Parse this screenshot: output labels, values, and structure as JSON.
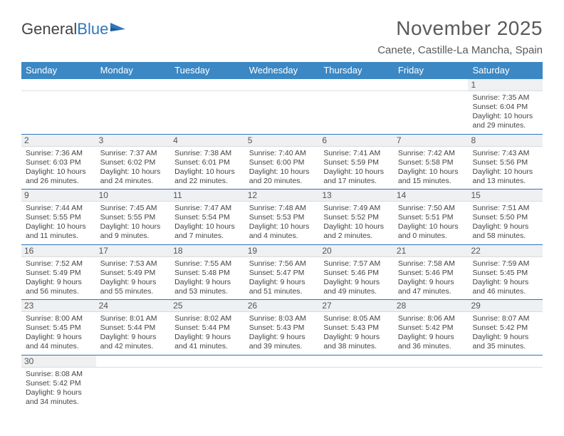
{
  "logo": {
    "text1": "General",
    "text2": "Blue"
  },
  "title": "November 2025",
  "location": "Canete, Castille-La Mancha, Spain",
  "colors": {
    "header_bg": "#3b88c4",
    "rule": "#2f77b8",
    "daynum_bg": "#eef0f2",
    "text": "#3a3a3a"
  },
  "dow": [
    "Sunday",
    "Monday",
    "Tuesday",
    "Wednesday",
    "Thursday",
    "Friday",
    "Saturday"
  ],
  "weeks": [
    [
      null,
      null,
      null,
      null,
      null,
      null,
      {
        "n": "1",
        "sr": "7:35 AM",
        "ss": "6:04 PM",
        "dl": "10 hours and 29 minutes."
      }
    ],
    [
      {
        "n": "2",
        "sr": "7:36 AM",
        "ss": "6:03 PM",
        "dl": "10 hours and 26 minutes."
      },
      {
        "n": "3",
        "sr": "7:37 AM",
        "ss": "6:02 PM",
        "dl": "10 hours and 24 minutes."
      },
      {
        "n": "4",
        "sr": "7:38 AM",
        "ss": "6:01 PM",
        "dl": "10 hours and 22 minutes."
      },
      {
        "n": "5",
        "sr": "7:40 AM",
        "ss": "6:00 PM",
        "dl": "10 hours and 20 minutes."
      },
      {
        "n": "6",
        "sr": "7:41 AM",
        "ss": "5:59 PM",
        "dl": "10 hours and 17 minutes."
      },
      {
        "n": "7",
        "sr": "7:42 AM",
        "ss": "5:58 PM",
        "dl": "10 hours and 15 minutes."
      },
      {
        "n": "8",
        "sr": "7:43 AM",
        "ss": "5:56 PM",
        "dl": "10 hours and 13 minutes."
      }
    ],
    [
      {
        "n": "9",
        "sr": "7:44 AM",
        "ss": "5:55 PM",
        "dl": "10 hours and 11 minutes."
      },
      {
        "n": "10",
        "sr": "7:45 AM",
        "ss": "5:55 PM",
        "dl": "10 hours and 9 minutes."
      },
      {
        "n": "11",
        "sr": "7:47 AM",
        "ss": "5:54 PM",
        "dl": "10 hours and 7 minutes."
      },
      {
        "n": "12",
        "sr": "7:48 AM",
        "ss": "5:53 PM",
        "dl": "10 hours and 4 minutes."
      },
      {
        "n": "13",
        "sr": "7:49 AM",
        "ss": "5:52 PM",
        "dl": "10 hours and 2 minutes."
      },
      {
        "n": "14",
        "sr": "7:50 AM",
        "ss": "5:51 PM",
        "dl": "10 hours and 0 minutes."
      },
      {
        "n": "15",
        "sr": "7:51 AM",
        "ss": "5:50 PM",
        "dl": "9 hours and 58 minutes."
      }
    ],
    [
      {
        "n": "16",
        "sr": "7:52 AM",
        "ss": "5:49 PM",
        "dl": "9 hours and 56 minutes."
      },
      {
        "n": "17",
        "sr": "7:53 AM",
        "ss": "5:49 PM",
        "dl": "9 hours and 55 minutes."
      },
      {
        "n": "18",
        "sr": "7:55 AM",
        "ss": "5:48 PM",
        "dl": "9 hours and 53 minutes."
      },
      {
        "n": "19",
        "sr": "7:56 AM",
        "ss": "5:47 PM",
        "dl": "9 hours and 51 minutes."
      },
      {
        "n": "20",
        "sr": "7:57 AM",
        "ss": "5:46 PM",
        "dl": "9 hours and 49 minutes."
      },
      {
        "n": "21",
        "sr": "7:58 AM",
        "ss": "5:46 PM",
        "dl": "9 hours and 47 minutes."
      },
      {
        "n": "22",
        "sr": "7:59 AM",
        "ss": "5:45 PM",
        "dl": "9 hours and 46 minutes."
      }
    ],
    [
      {
        "n": "23",
        "sr": "8:00 AM",
        "ss": "5:45 PM",
        "dl": "9 hours and 44 minutes."
      },
      {
        "n": "24",
        "sr": "8:01 AM",
        "ss": "5:44 PM",
        "dl": "9 hours and 42 minutes."
      },
      {
        "n": "25",
        "sr": "8:02 AM",
        "ss": "5:44 PM",
        "dl": "9 hours and 41 minutes."
      },
      {
        "n": "26",
        "sr": "8:03 AM",
        "ss": "5:43 PM",
        "dl": "9 hours and 39 minutes."
      },
      {
        "n": "27",
        "sr": "8:05 AM",
        "ss": "5:43 PM",
        "dl": "9 hours and 38 minutes."
      },
      {
        "n": "28",
        "sr": "8:06 AM",
        "ss": "5:42 PM",
        "dl": "9 hours and 36 minutes."
      },
      {
        "n": "29",
        "sr": "8:07 AM",
        "ss": "5:42 PM",
        "dl": "9 hours and 35 minutes."
      }
    ],
    [
      {
        "n": "30",
        "sr": "8:08 AM",
        "ss": "5:42 PM",
        "dl": "9 hours and 34 minutes."
      },
      null,
      null,
      null,
      null,
      null,
      null
    ]
  ],
  "labels": {
    "sunrise": "Sunrise:",
    "sunset": "Sunset:",
    "daylight": "Daylight:"
  }
}
